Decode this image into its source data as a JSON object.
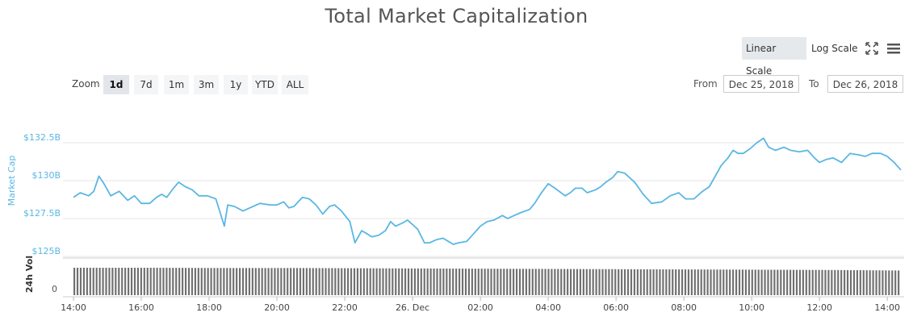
{
  "title": "Total Market Capitalization",
  "toolbar": {
    "linear_scale": "Linear Scale",
    "log_scale": "Log Scale",
    "fullscreen_icon": "fullscreen-icon",
    "menu_icon": "hamburger-menu-icon"
  },
  "zoom": {
    "label": "Zoom",
    "options": [
      "1d",
      "7d",
      "1m",
      "3m",
      "1y",
      "YTD",
      "ALL"
    ],
    "selected": "1d"
  },
  "range": {
    "from_label": "From",
    "from_value": "Dec 25, 2018",
    "to_label": "To",
    "to_value": "Dec 26, 2018"
  },
  "colors": {
    "line": "#5ab7e3",
    "volume": "#707070",
    "grid": "#e6e6e6",
    "active_btn": "#e2e6ea"
  },
  "chart_data": {
    "type": "line",
    "title": "Total Market Capitalization",
    "ylabel": "Market Cap",
    "volume_label": "24h Vol",
    "volume_zero_label": "0",
    "ylim": [
      125,
      132.5
    ],
    "y_ticks": [
      {
        "value": 125,
        "label": "$125B"
      },
      {
        "value": 127.5,
        "label": "$127.5B"
      },
      {
        "value": 130,
        "label": "$130B"
      },
      {
        "value": 132.5,
        "label": "$132.5B"
      }
    ],
    "x_ticks": [
      "14:00",
      "16:00",
      "18:00",
      "20:00",
      "22:00",
      "26. Dec",
      "02:00",
      "04:00",
      "06:00",
      "08:00",
      "10:00",
      "12:00",
      "14:00"
    ],
    "x_start_hour": 14,
    "x_end_hour": 38.4,
    "series": [
      {
        "x": [
          14.0,
          14.2,
          14.45,
          14.6,
          14.75,
          14.9,
          15.1,
          15.35,
          15.6,
          15.8,
          16.0,
          16.25,
          16.45,
          16.6,
          16.75,
          16.95,
          17.1,
          17.3,
          17.5,
          17.7,
          17.95,
          18.2,
          18.45,
          18.55,
          18.75,
          19.0,
          19.2,
          19.5,
          19.8,
          20.0,
          20.2,
          20.35,
          20.5,
          20.75,
          20.95,
          21.15,
          21.35,
          21.55,
          21.7,
          21.9,
          22.15,
          22.3,
          22.5,
          22.65,
          22.8,
          23.0,
          23.2,
          23.35,
          23.5,
          23.7,
          23.85,
          24.0,
          24.15,
          24.35,
          24.5,
          24.7,
          24.9,
          25.05,
          25.2,
          25.35,
          25.6,
          25.8,
          26.0,
          26.2,
          26.4,
          26.65,
          26.8,
          27.0,
          27.2,
          27.45,
          27.6,
          27.8,
          28.0,
          28.2,
          28.5,
          28.65,
          28.8,
          29.0,
          29.15,
          29.4,
          29.55,
          29.7,
          29.9,
          30.05,
          30.25,
          30.55,
          30.8,
          31.05,
          31.35,
          31.6,
          31.85,
          32.05,
          32.3,
          32.55,
          32.75,
          32.95,
          33.1,
          33.3,
          33.45,
          33.6,
          33.75,
          33.95,
          34.15,
          34.35,
          34.5,
          34.7,
          34.95,
          35.15,
          35.4,
          35.65,
          35.85,
          36.0,
          36.2,
          36.4,
          36.65,
          36.9,
          37.15,
          37.35,
          37.55,
          37.8,
          38.0,
          38.2,
          38.4
        ],
        "values": [
          128.9,
          129.2,
          129.0,
          129.3,
          130.3,
          129.8,
          129.0,
          129.3,
          128.7,
          129.0,
          128.5,
          128.5,
          128.9,
          129.1,
          128.9,
          129.5,
          129.9,
          129.6,
          129.4,
          129.0,
          129.0,
          128.8,
          127.0,
          128.4,
          128.3,
          128.0,
          128.2,
          128.5,
          128.4,
          128.4,
          128.6,
          128.2,
          128.3,
          128.9,
          128.8,
          128.4,
          127.8,
          128.3,
          128.4,
          128.0,
          127.3,
          125.9,
          126.7,
          126.5,
          126.3,
          126.4,
          126.7,
          127.3,
          127.0,
          127.2,
          127.4,
          127.1,
          126.8,
          125.9,
          125.9,
          126.1,
          126.2,
          126.0,
          125.8,
          125.9,
          126.0,
          126.5,
          127.0,
          127.3,
          127.4,
          127.7,
          127.5,
          127.7,
          127.9,
          128.1,
          128.5,
          129.2,
          129.8,
          129.5,
          129.0,
          129.2,
          129.5,
          129.5,
          129.2,
          129.4,
          129.6,
          129.9,
          130.2,
          130.6,
          130.5,
          129.9,
          129.1,
          128.5,
          128.6,
          129.0,
          129.2,
          128.8,
          128.8,
          129.3,
          129.6,
          130.4,
          131.0,
          131.5,
          132.0,
          131.8,
          131.8,
          132.1,
          132.5,
          132.8,
          132.2,
          132.0,
          132.2,
          132.0,
          131.9,
          132.0,
          131.5,
          131.2,
          131.4,
          131.5,
          131.2,
          131.8,
          131.7,
          131.6,
          131.8,
          131.8,
          131.6,
          131.2,
          130.7
        ]
      }
    ],
    "volume_relative": [
      1.0,
      1.0,
      0.99,
      0.99,
      0.98,
      0.97,
      0.96,
      0.95,
      0.94,
      0.93,
      0.92,
      0.9
    ],
    "legend": "none",
    "grid": true
  }
}
